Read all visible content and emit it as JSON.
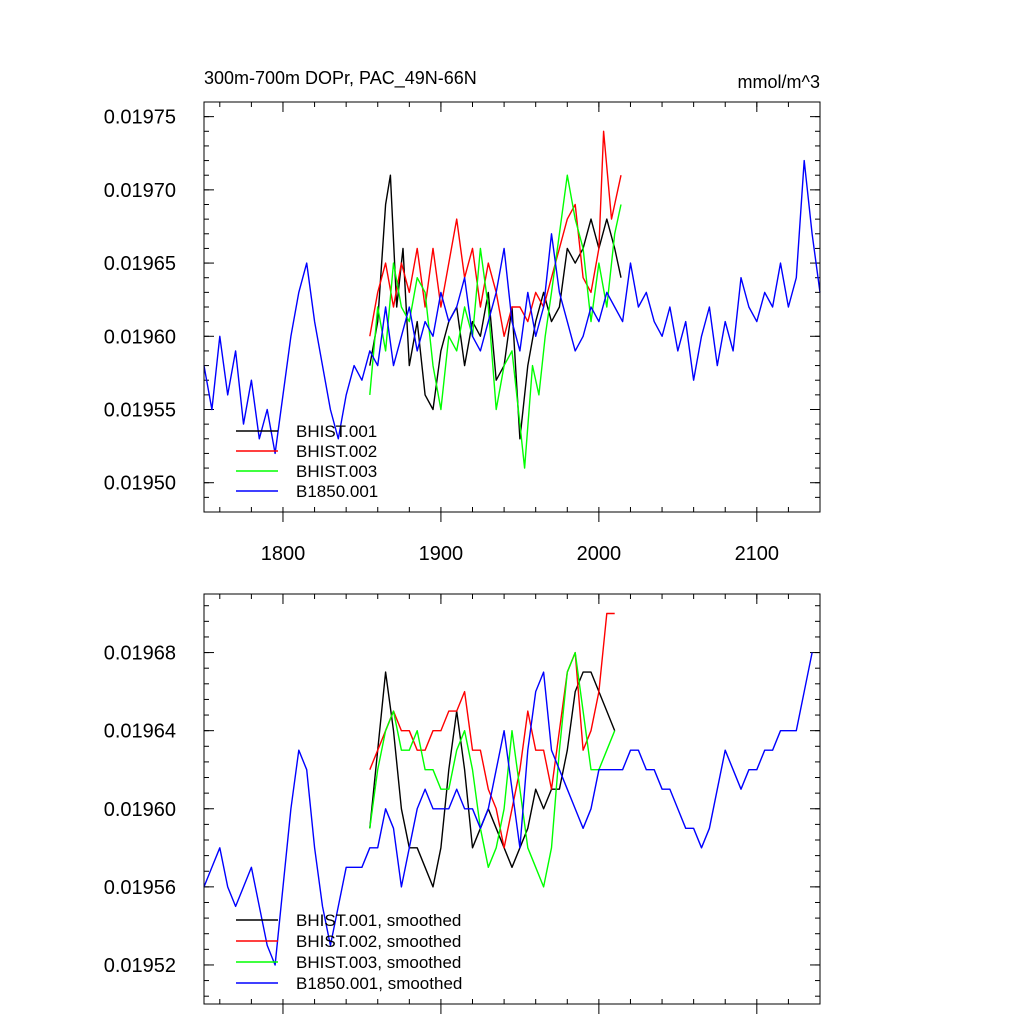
{
  "chart_data": [
    {
      "type": "line",
      "title": "300m-700m DOPr, PAC_49N-66N",
      "units": "mmol/m^3",
      "xlim": [
        1750,
        2140
      ],
      "ylim": [
        0.01948,
        0.01976
      ],
      "xticks": [
        1800,
        1900,
        2000,
        2100
      ],
      "yticks": [
        0.0195,
        0.01955,
        0.0196,
        0.01965,
        0.0197,
        0.01975
      ],
      "ytick_labels": [
        "0.01950",
        "0.01955",
        "0.01960",
        "0.01965",
        "0.01970",
        "0.01975"
      ],
      "legend_position": "bottom-left",
      "series": [
        {
          "name": "BHIST.001",
          "color": "#000000",
          "x": [
            1855,
            1860,
            1865,
            1868,
            1872,
            1876,
            1880,
            1885,
            1890,
            1895,
            1900,
            1905,
            1910,
            1915,
            1920,
            1925,
            1930,
            1935,
            1940,
            1945,
            1950,
            1955,
            1960,
            1965,
            1970,
            1975,
            1980,
            1985,
            1990,
            1995,
            2000,
            2005,
            2010,
            2014
          ],
          "y": [
            0.01958,
            0.01961,
            0.01969,
            0.01971,
            0.01962,
            0.01966,
            0.01958,
            0.01961,
            0.01956,
            0.01955,
            0.01959,
            0.01961,
            0.01962,
            0.01958,
            0.01961,
            0.0196,
            0.01963,
            0.01957,
            0.01958,
            0.01962,
            0.01953,
            0.01958,
            0.01961,
            0.01963,
            0.01961,
            0.01962,
            0.01966,
            0.01965,
            0.01966,
            0.01968,
            0.01966,
            0.01968,
            0.01966,
            0.01964
          ]
        },
        {
          "name": "BHIST.002",
          "color": "#ff0000",
          "x": [
            1855,
            1860,
            1865,
            1870,
            1875,
            1880,
            1885,
            1890,
            1895,
            1900,
            1905,
            1910,
            1915,
            1920,
            1925,
            1930,
            1935,
            1940,
            1945,
            1950,
            1955,
            1960,
            1965,
            1970,
            1975,
            1980,
            1985,
            1990,
            1995,
            2000,
            2003,
            2008,
            2014
          ],
          "y": [
            0.0196,
            0.01963,
            0.01965,
            0.01962,
            0.01965,
            0.01963,
            0.01966,
            0.01962,
            0.01966,
            0.01962,
            0.01965,
            0.01968,
            0.01964,
            0.01966,
            0.01962,
            0.01965,
            0.01963,
            0.0196,
            0.01962,
            0.01962,
            0.01961,
            0.01963,
            0.01962,
            0.01964,
            0.01966,
            0.01968,
            0.01969,
            0.01964,
            0.01963,
            0.01966,
            0.01974,
            0.01968,
            0.01971
          ]
        },
        {
          "name": "BHIST.003",
          "color": "#00ff00",
          "x": [
            1855,
            1860,
            1865,
            1870,
            1875,
            1880,
            1885,
            1890,
            1895,
            1900,
            1905,
            1910,
            1915,
            1920,
            1925,
            1930,
            1935,
            1940,
            1945,
            1950,
            1953,
            1958,
            1962,
            1966,
            1970,
            1975,
            1980,
            1985,
            1990,
            1995,
            2000,
            2005,
            2010,
            2014
          ],
          "y": [
            0.01956,
            0.01962,
            0.01959,
            0.01965,
            0.01962,
            0.01961,
            0.01964,
            0.01963,
            0.01958,
            0.01955,
            0.0196,
            0.01959,
            0.01962,
            0.0196,
            0.01966,
            0.01962,
            0.01955,
            0.01958,
            0.01959,
            0.01954,
            0.01951,
            0.01958,
            0.01956,
            0.0196,
            0.01963,
            0.01967,
            0.01971,
            0.01968,
            0.01966,
            0.01961,
            0.01965,
            0.01962,
            0.01967,
            0.01969
          ]
        },
        {
          "name": "B1850.001",
          "color": "#0000ff",
          "x": [
            1750,
            1755,
            1760,
            1765,
            1770,
            1775,
            1780,
            1785,
            1790,
            1795,
            1800,
            1805,
            1810,
            1815,
            1820,
            1825,
            1830,
            1835,
            1840,
            1845,
            1850,
            1855,
            1860,
            1865,
            1870,
            1875,
            1880,
            1885,
            1890,
            1895,
            1900,
            1905,
            1910,
            1915,
            1920,
            1925,
            1930,
            1935,
            1940,
            1945,
            1950,
            1955,
            1960,
            1965,
            1970,
            1975,
            1980,
            1985,
            1990,
            1995,
            2000,
            2005,
            2010,
            2015,
            2020,
            2025,
            2030,
            2035,
            2040,
            2045,
            2050,
            2055,
            2060,
            2065,
            2070,
            2075,
            2080,
            2085,
            2090,
            2095,
            2100,
            2105,
            2110,
            2115,
            2120,
            2125,
            2130,
            2135,
            2140
          ],
          "y": [
            0.01958,
            0.01955,
            0.0196,
            0.01956,
            0.01959,
            0.01954,
            0.01957,
            0.01953,
            0.01955,
            0.01952,
            0.01956,
            0.0196,
            0.01963,
            0.01965,
            0.01961,
            0.01958,
            0.01955,
            0.01953,
            0.01956,
            0.01958,
            0.01957,
            0.01959,
            0.01958,
            0.01962,
            0.01958,
            0.0196,
            0.01962,
            0.01959,
            0.01961,
            0.0196,
            0.01963,
            0.01961,
            0.01962,
            0.01964,
            0.0196,
            0.01959,
            0.01961,
            0.01963,
            0.01966,
            0.01961,
            0.01959,
            0.01963,
            0.0196,
            0.01962,
            0.01967,
            0.01963,
            0.01961,
            0.01959,
            0.0196,
            0.01962,
            0.01961,
            0.01963,
            0.01962,
            0.01961,
            0.01965,
            0.01962,
            0.01963,
            0.01961,
            0.0196,
            0.01962,
            0.01959,
            0.01961,
            0.01957,
            0.0196,
            0.01962,
            0.01958,
            0.01961,
            0.01959,
            0.01964,
            0.01962,
            0.01961,
            0.01963,
            0.01962,
            0.01965,
            0.01962,
            0.01964,
            0.01972,
            0.01967,
            0.01963
          ]
        }
      ]
    },
    {
      "type": "line",
      "xlim": [
        1750,
        2140
      ],
      "ylim": [
        0.0195,
        0.01971
      ],
      "xticks": [
        1800,
        1900,
        2000,
        2100
      ],
      "yticks": [
        0.01952,
        0.01956,
        0.0196,
        0.01964,
        0.01968
      ],
      "ytick_labels": [
        "0.01952",
        "0.01956",
        "0.01960",
        "0.01964",
        "0.01968"
      ],
      "legend_position": "bottom-left",
      "series": [
        {
          "name": "BHIST.001, smoothed",
          "color": "#000000",
          "x": [
            1855,
            1860,
            1865,
            1870,
            1875,
            1880,
            1885,
            1890,
            1895,
            1900,
            1905,
            1910,
            1915,
            1920,
            1925,
            1930,
            1935,
            1940,
            1945,
            1950,
            1955,
            1960,
            1965,
            1970,
            1975,
            1980,
            1985,
            1990,
            1995,
            2000,
            2005,
            2010
          ],
          "y": [
            0.01959,
            0.01963,
            0.01967,
            0.01964,
            0.0196,
            0.01958,
            0.01958,
            0.01957,
            0.01956,
            0.01958,
            0.01962,
            0.01965,
            0.01962,
            0.01958,
            0.01959,
            0.0196,
            0.01959,
            0.01958,
            0.01957,
            0.01958,
            0.01959,
            0.01961,
            0.0196,
            0.01961,
            0.01961,
            0.01963,
            0.01966,
            0.01967,
            0.01967,
            0.01966,
            0.01965,
            0.01964
          ]
        },
        {
          "name": "BHIST.002, smoothed",
          "color": "#ff0000",
          "x": [
            1855,
            1860,
            1865,
            1870,
            1875,
            1880,
            1885,
            1890,
            1895,
            1900,
            1905,
            1910,
            1915,
            1920,
            1925,
            1930,
            1935,
            1940,
            1945,
            1950,
            1955,
            1960,
            1965,
            1970,
            1975,
            1980,
            1985,
            1990,
            1995,
            2000,
            2005,
            2010
          ],
          "y": [
            0.01962,
            0.01963,
            0.01964,
            0.01965,
            0.01964,
            0.01964,
            0.01963,
            0.01963,
            0.01964,
            0.01964,
            0.01965,
            0.01965,
            0.01966,
            0.01963,
            0.01963,
            0.01961,
            0.0196,
            0.01958,
            0.0196,
            0.01962,
            0.01965,
            0.01963,
            0.01963,
            0.01961,
            0.01964,
            0.01967,
            0.01968,
            0.01963,
            0.01964,
            0.01966,
            0.0197,
            0.0197
          ]
        },
        {
          "name": "BHIST.003, smoothed",
          "color": "#00ff00",
          "x": [
            1855,
            1860,
            1865,
            1870,
            1875,
            1880,
            1885,
            1890,
            1895,
            1900,
            1905,
            1910,
            1915,
            1920,
            1925,
            1930,
            1935,
            1940,
            1945,
            1950,
            1955,
            1960,
            1965,
            1970,
            1975,
            1980,
            1985,
            1990,
            1995,
            2000,
            2005,
            2010
          ],
          "y": [
            0.01959,
            0.01962,
            0.01964,
            0.01965,
            0.01963,
            0.01963,
            0.01964,
            0.01962,
            0.01962,
            0.01961,
            0.01961,
            0.01963,
            0.01964,
            0.01962,
            0.01959,
            0.01957,
            0.01958,
            0.0196,
            0.01964,
            0.01961,
            0.01958,
            0.01957,
            0.01956,
            0.01958,
            0.01963,
            0.01967,
            0.01968,
            0.01965,
            0.01962,
            0.01962,
            0.01963,
            0.01964
          ]
        },
        {
          "name": "B1850.001, smoothed",
          "color": "#0000ff",
          "x": [
            1750,
            1755,
            1760,
            1765,
            1770,
            1775,
            1780,
            1785,
            1790,
            1795,
            1800,
            1805,
            1810,
            1815,
            1820,
            1825,
            1830,
            1835,
            1840,
            1845,
            1850,
            1855,
            1860,
            1865,
            1870,
            1875,
            1880,
            1885,
            1890,
            1895,
            1900,
            1905,
            1910,
            1915,
            1920,
            1925,
            1930,
            1935,
            1940,
            1945,
            1950,
            1955,
            1960,
            1965,
            1970,
            1975,
            1980,
            1985,
            1990,
            1995,
            2000,
            2005,
            2010,
            2015,
            2020,
            2025,
            2030,
            2035,
            2040,
            2045,
            2050,
            2055,
            2060,
            2065,
            2070,
            2075,
            2080,
            2085,
            2090,
            2095,
            2100,
            2105,
            2110,
            2115,
            2120,
            2125,
            2130,
            2135
          ],
          "y": [
            0.01956,
            0.01957,
            0.01958,
            0.01956,
            0.01955,
            0.01956,
            0.01957,
            0.01955,
            0.01953,
            0.01952,
            0.01956,
            0.0196,
            0.01963,
            0.01962,
            0.01958,
            0.01955,
            0.01953,
            0.01955,
            0.01957,
            0.01957,
            0.01957,
            0.01958,
            0.01958,
            0.0196,
            0.01959,
            0.01956,
            0.01958,
            0.0196,
            0.01961,
            0.0196,
            0.0196,
            0.0196,
            0.01961,
            0.0196,
            0.0196,
            0.01959,
            0.0196,
            0.01962,
            0.01964,
            0.01961,
            0.01958,
            0.01963,
            0.01966,
            0.01967,
            0.01963,
            0.01962,
            0.01961,
            0.0196,
            0.01959,
            0.0196,
            0.01962,
            0.01962,
            0.01962,
            0.01962,
            0.01963,
            0.01963,
            0.01962,
            0.01962,
            0.01961,
            0.01961,
            0.0196,
            0.01959,
            0.01959,
            0.01958,
            0.01959,
            0.01961,
            0.01963,
            0.01962,
            0.01961,
            0.01962,
            0.01962,
            0.01963,
            0.01963,
            0.01964,
            0.01964,
            0.01964,
            0.01966,
            0.01968
          ]
        }
      ]
    }
  ]
}
